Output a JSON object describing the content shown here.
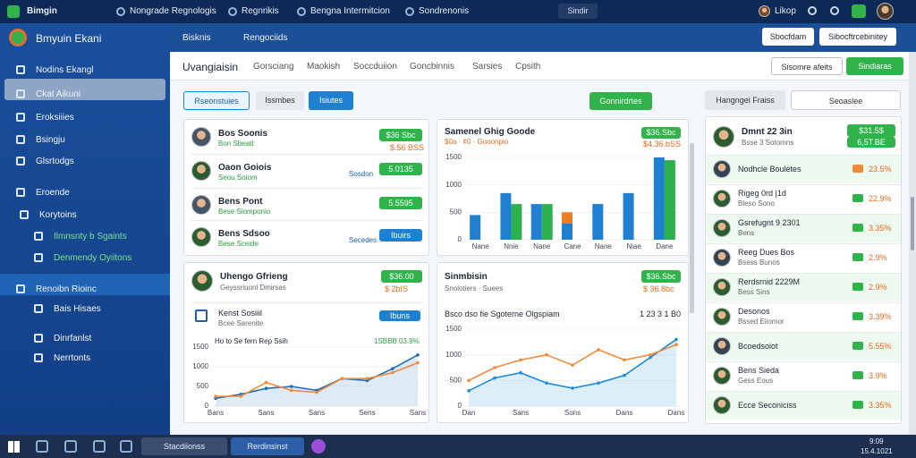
{
  "topbar": {
    "brand": "Bimgin",
    "tabs": [
      "Nongrade Regnologis",
      "Regnrikis",
      "Bengna Intermitcion",
      "Sondrenonis"
    ],
    "search": "Sindir",
    "user": "Likop"
  },
  "sidebar": {
    "title": "Bmyuin Ekani",
    "items": [
      "Nodins Ekangl",
      "Ckat Aikuni",
      "Eroksiiies",
      "Bsingju",
      "Glsrtodgs",
      "Eroende",
      "Korytoins",
      "Ilmnsnty b Sgaints",
      "Denmendy Oyiitons",
      "Renoibn Rioinc",
      "Bais Hisaes",
      "Dinrfanlst",
      "Nerrtonts"
    ]
  },
  "header": {
    "tabs": [
      "Bisknis",
      "Rengociids"
    ],
    "buttons": [
      "Sbocfdam",
      "Sibocftrcebinitey"
    ]
  },
  "toolbar": {
    "title": "Uvangiaisin",
    "tabs": [
      "Gorsciang",
      "Maokish",
      "Soccduiion",
      "Goncbinnis",
      "Sarsies",
      "Cpsith"
    ],
    "buttons": [
      "Sisomre afeits",
      "Sindiaras"
    ]
  },
  "filters": {
    "tabs": [
      "Rseonstuies",
      "Issmbes",
      "Isiutes"
    ],
    "action": "Gonnirdrtes"
  },
  "players": [
    {
      "name": "Bos Soonis",
      "sub": "Bon Sbeatt",
      "badge": "$36 Sbc",
      "value": "$.56 BSS"
    },
    {
      "name": "Oaon Goiois",
      "sub": "Seou Soiom",
      "side": "Sosdon",
      "badge": "5.0135"
    },
    {
      "name": "Bens Pont",
      "sub": "Bese Siomponio",
      "badge": "5.5595"
    },
    {
      "name": "Bens Sdsoo",
      "sub": "Bese Sceide",
      "side": "Secedes",
      "tag": "Ibuirs"
    }
  ],
  "panel_left": {
    "name": "Uhengo Gfrieng",
    "sub": "Geyssriuonl Dmirsas",
    "badge": "$36.00",
    "value": "$ 2bIS",
    "row": "Kenst Sosiiil",
    "row_sub": "Bcee Sarenite",
    "tag": "Ibuns",
    "chart_value": "1SBBB 03.9%"
  },
  "panel_mid_top": {
    "name": "Samenel Ghig Goode",
    "sub": "$0a · ¢0 · Gooonpio",
    "badge": "$36.Sbc",
    "value": "$4.36.bSS"
  },
  "panel_mid_bottom": {
    "name": "Sinmbisin",
    "sub": "Snolotiers · Suees",
    "badge": "$36.Sbc",
    "value": "$ 36.8bc",
    "chart_value": "1 23 3 1 B0"
  },
  "right": {
    "tabs": [
      "Hangngei Fraiss",
      "Seoaslee"
    ],
    "top": {
      "name": "Dmnt 22 3in",
      "sub": "Bsse 3 Sotomns",
      "badge": "$31.5$",
      "value": "6,5T.BE"
    },
    "rows": [
      {
        "name": "Nodhcle Bouletes",
        "pct": "23.5%"
      },
      {
        "name": "Rigeg 0rd |1d",
        "sub": "Bleso Sono",
        "pct": "22.9%"
      },
      {
        "name": "Gsrefugnt 9 2301",
        "sub": "Bens",
        "pct": "3.35%"
      },
      {
        "name": "Reeg Dues Bos",
        "sub": "Bsess Bunos",
        "pct": "2.9%"
      },
      {
        "name": "Rerdsrnid 2229M",
        "sub": "Bess Sins",
        "pct": "2.9%"
      },
      {
        "name": "Desonos",
        "sub": "Bssed Eiiomor",
        "pct": "3.39%"
      },
      {
        "name": "Bcoedsoiot",
        "pct": "5.55%"
      },
      {
        "name": "Bens Sieda",
        "sub": "Gess Eous",
        "pct": "3.9%"
      },
      {
        "name": "Ecce Seconiciss",
        "pct": "3.35%"
      }
    ]
  },
  "taskbar": {
    "items": [
      "Stacdiionss",
      "Rerdinsinst"
    ],
    "time": "9:09",
    "date": "15.4.1021"
  },
  "chart_data": [
    {
      "type": "bar",
      "categories": [
        "Nane",
        "Nnie",
        "Nane",
        "Cane",
        "Nane",
        "Niae",
        "Dane"
      ],
      "ylim": [
        0,
        1500
      ],
      "yticks": [
        0,
        500,
        1000,
        1500
      ],
      "series": [
        {
          "color": "#1f7fd0",
          "values": [
            450,
            850,
            650,
            300,
            650,
            850,
            1500
          ]
        },
        {
          "color": "#2bb24c",
          "values": [
            null,
            650,
            650,
            null,
            null,
            null,
            1450
          ]
        },
        {
          "color": "#f07c22",
          "stacked": true,
          "values": [
            null,
            null,
            null,
            200,
            null,
            null,
            null
          ]
        }
      ]
    },
    {
      "type": "line",
      "title": "Ho to Se fern Rep Ssih",
      "categories": [
        "Bans",
        null,
        "Sans",
        null,
        "Sans",
        null,
        "Sens",
        null,
        "Sans"
      ],
      "ylim": [
        0,
        1500
      ],
      "yticks": [
        0,
        500,
        1000,
        1500
      ],
      "series": [
        {
          "color": "#1f6fb8",
          "area": true,
          "values": [
            200,
            300,
            450,
            500,
            400,
            700,
            650,
            950,
            1300
          ]
        },
        {
          "color": "#f08a3a",
          "values": [
            250,
            250,
            600,
            400,
            350,
            700,
            700,
            850,
            1100
          ]
        }
      ]
    },
    {
      "type": "line",
      "title": "Bsco dso fie Sgoterne Olgspiam",
      "categories": [
        "Dan",
        null,
        "Sans",
        null,
        "Sons",
        null,
        "Dans",
        null,
        "Dans"
      ],
      "ylim": [
        0,
        1500
      ],
      "yticks": [
        0,
        500,
        1000,
        1500
      ],
      "series": [
        {
          "color": "#1f8ad6",
          "area": true,
          "values": [
            300,
            550,
            650,
            450,
            350,
            450,
            600,
            950,
            1300
          ]
        },
        {
          "color": "#f08a3a",
          "values": [
            500,
            750,
            900,
            1000,
            800,
            1100,
            900,
            1000,
            1200
          ]
        }
      ]
    }
  ]
}
